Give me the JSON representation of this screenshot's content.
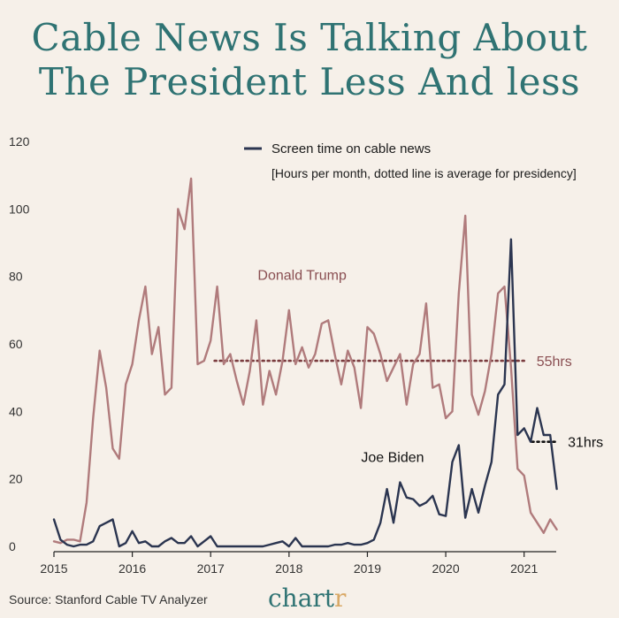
{
  "title": {
    "line1": "Cable News Is Talking About",
    "line2": "The President Less And less"
  },
  "footer": {
    "source": "Source: Stanford Cable TV Analyzer",
    "brand_main": "chart",
    "brand_accent": "r"
  },
  "colors": {
    "trump": "#b07b7c",
    "biden": "#2b3550",
    "trump_avg": "#7a3b3e",
    "biden_avg": "#111111",
    "accent": "#2f7373"
  },
  "chart_data": {
    "type": "line",
    "title": "Cable News Is Talking About The President Less And less",
    "legend": "Screen time on cable news",
    "note": "[Hours per month, dotted line is average for presidency]",
    "xlabel": "",
    "ylabel": "",
    "xlim": [
      2015,
      2021.5
    ],
    "ylim": [
      0,
      120
    ],
    "yticks": [
      0,
      20,
      40,
      60,
      80,
      100,
      120
    ],
    "xticks": [
      2015,
      2016,
      2017,
      2018,
      2019,
      2020,
      2021
    ],
    "grid": false,
    "series": [
      {
        "name": "Donald Trump",
        "color": "#b07b7c",
        "start": 2015,
        "step": 0.0833333,
        "values": [
          1.5,
          1,
          2,
          2,
          1.5,
          13,
          38,
          58,
          47,
          29,
          26,
          48,
          54,
          67,
          77,
          57,
          65,
          45,
          47,
          100,
          94,
          109,
          54,
          55,
          61,
          77,
          54,
          57,
          49,
          42,
          52,
          67,
          42,
          52,
          45,
          55,
          70,
          54,
          59,
          53,
          57,
          66,
          67,
          57,
          48,
          58,
          53,
          41,
          65,
          63,
          57,
          49,
          53,
          57,
          42,
          54,
          57,
          72,
          47,
          48,
          38,
          40,
          75,
          98,
          45,
          39,
          46,
          57,
          75,
          77,
          53,
          23,
          21,
          10,
          7,
          4,
          8,
          5
        ]
      },
      {
        "name": "Joe Biden",
        "color": "#2b3550",
        "start": 2015,
        "step": 0.0833333,
        "values": [
          8,
          2,
          0.5,
          0,
          0.5,
          0.5,
          1.5,
          6,
          7,
          8,
          0,
          1,
          4.5,
          1,
          1.5,
          0,
          0,
          1.5,
          2.5,
          1,
          1,
          3,
          0,
          1.5,
          3,
          0,
          0,
          0,
          0,
          0,
          0,
          0,
          0,
          0.5,
          1,
          1.5,
          0,
          2.5,
          0,
          0,
          0,
          0,
          0,
          0.5,
          0.5,
          1,
          0.5,
          0.5,
          1,
          2,
          7,
          17,
          7,
          19,
          14.5,
          14,
          12,
          13,
          15,
          9.5,
          9,
          25,
          30,
          8.5,
          17,
          10,
          18,
          25,
          45,
          48,
          91,
          33,
          35,
          31,
          41,
          33,
          33,
          17
        ]
      }
    ],
    "averages": [
      {
        "name": "Donald Trump",
        "value": 55,
        "x_start": 2017.05,
        "x_end": 2021.0,
        "label": "55hrs",
        "color": "#7a3b3e"
      },
      {
        "name": "Joe Biden",
        "value": 31,
        "x_start": 2021.1,
        "x_end": 2021.4,
        "label": "31hrs",
        "color": "#111111"
      }
    ],
    "series_labels": [
      {
        "name": "Donald Trump",
        "text": "Donald Trump",
        "x": 2017.6,
        "y": 79
      },
      {
        "name": "Joe Biden",
        "text": "Joe Biden",
        "x": 2018.92,
        "y": 25
      }
    ]
  }
}
